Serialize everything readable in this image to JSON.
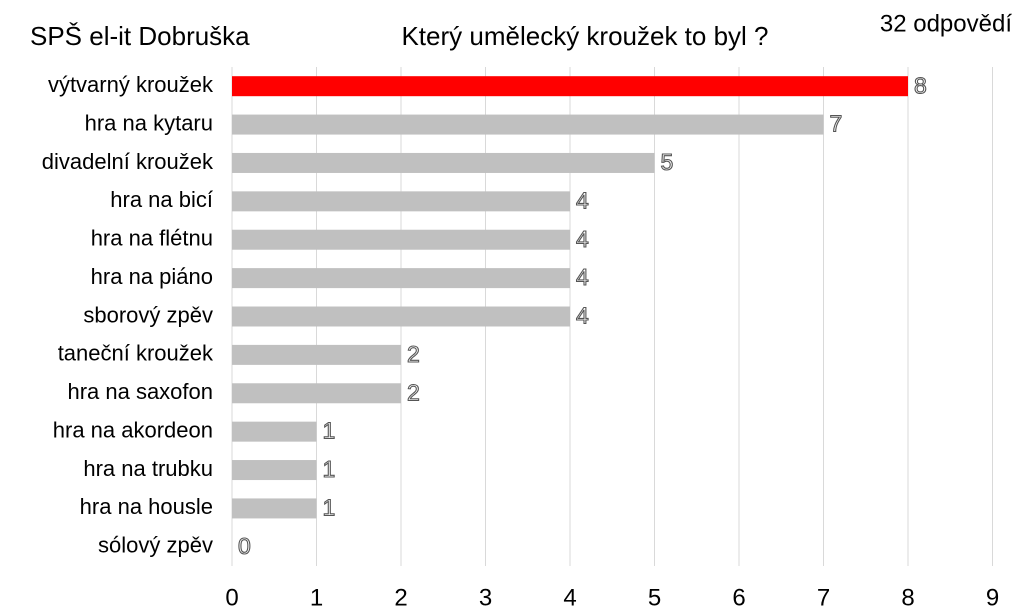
{
  "chart_data": {
    "type": "barh",
    "subtitle": "SPŠ el-it Dobruška",
    "title": "Který umělecký kroužek to byl ?",
    "annotation": "32 odpovědí",
    "categories": [
      "výtvarný kroužek",
      "hra na kytaru",
      "divadelní kroužek",
      "hra na bicí",
      "hra na flétnu",
      "hra na piáno",
      "sborový zpěv",
      "taneční kroužek",
      "hra na saxofon",
      "hra na akordeon",
      "hra na trubku",
      "hra na housle",
      "sólový zpěv"
    ],
    "values": [
      8,
      7,
      5,
      4,
      4,
      4,
      4,
      2,
      2,
      1,
      1,
      1,
      0
    ],
    "colors": [
      "#ff0000",
      "#c0c0c0",
      "#c0c0c0",
      "#c0c0c0",
      "#c0c0c0",
      "#c0c0c0",
      "#c0c0c0",
      "#c0c0c0",
      "#c0c0c0",
      "#c0c0c0",
      "#c0c0c0",
      "#c0c0c0",
      "#c0c0c0"
    ],
    "xlim": [
      0,
      9
    ],
    "xticks": [
      0,
      1,
      2,
      3,
      4,
      5,
      6,
      7,
      8,
      9
    ],
    "grid": true
  }
}
